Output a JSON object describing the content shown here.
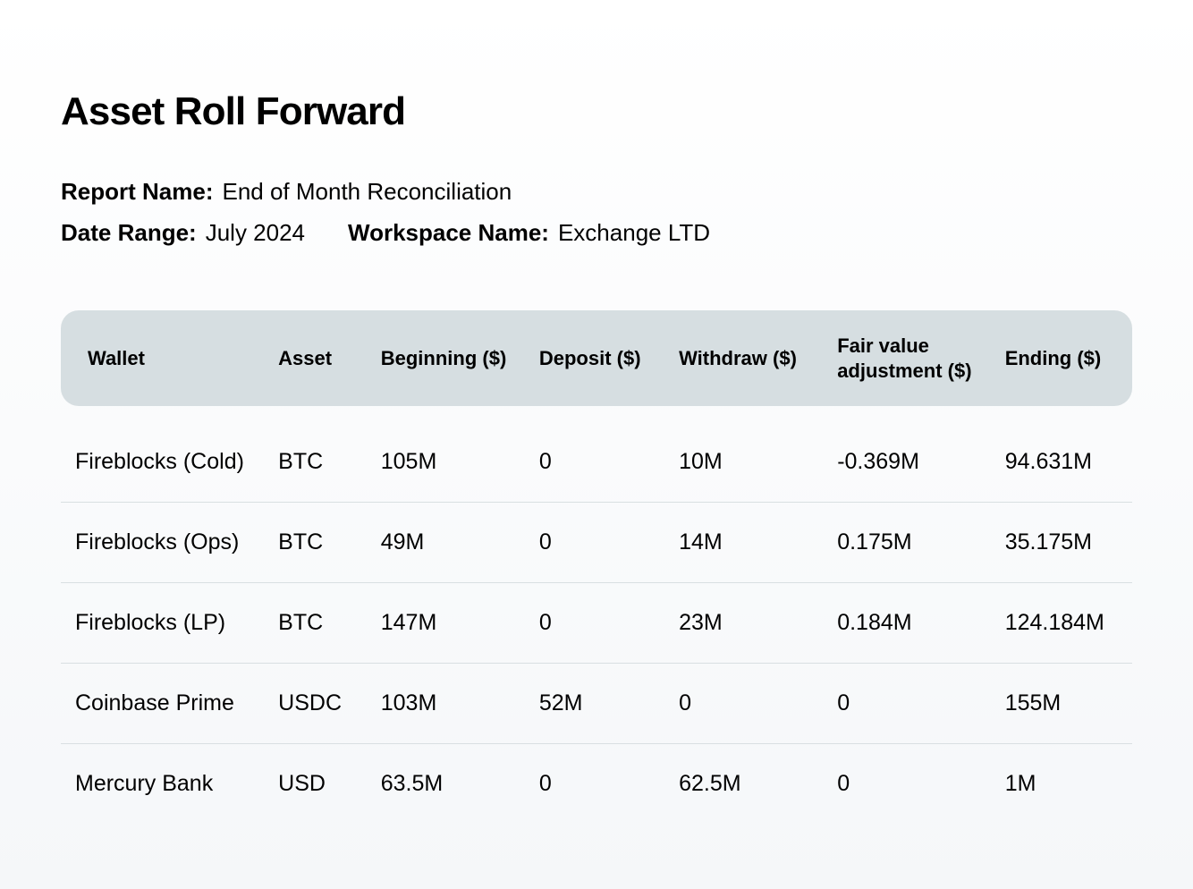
{
  "title": "Asset Roll Forward",
  "meta": {
    "report_name_label": "Report Name:",
    "report_name_value": "End of Month Reconciliation",
    "date_range_label": "Date Range:",
    "date_range_value": "July 2024",
    "workspace_label": "Workspace Name:",
    "workspace_value": "Exchange LTD"
  },
  "table": {
    "header_bg": "#d6dee1",
    "row_border_color": "#d9dfe2",
    "columns": [
      "Wallet",
      "Asset",
      "Beginning ($)",
      "Deposit ($)",
      "Withdraw ($)",
      "Fair value adjustment ($)",
      "Ending ($)"
    ],
    "rows": [
      {
        "wallet": "Fireblocks (Cold)",
        "asset": "BTC",
        "beginning": "105M",
        "deposit": "0",
        "withdraw": "10M",
        "fva": "-0.369M",
        "ending": "94.631M"
      },
      {
        "wallet": "Fireblocks (Ops)",
        "asset": "BTC",
        "beginning": "49M",
        "deposit": "0",
        "withdraw": "14M",
        "fva": "0.175M",
        "ending": "35.175M"
      },
      {
        "wallet": "Fireblocks (LP)",
        "asset": "BTC",
        "beginning": "147M",
        "deposit": "0",
        "withdraw": "23M",
        "fva": "0.184M",
        "ending": "124.184M"
      },
      {
        "wallet": "Coinbase Prime",
        "asset": "USDC",
        "beginning": "103M",
        "deposit": "52M",
        "withdraw": "0",
        "fva": "0",
        "ending": "155M"
      },
      {
        "wallet": "Mercury Bank",
        "asset": "USD",
        "beginning": "63.5M",
        "deposit": "0",
        "withdraw": "62.5M",
        "fva": "0",
        "ending": "1M"
      }
    ]
  },
  "colors": {
    "text": "#000000",
    "background_top": "#ffffff",
    "background_bottom": "#f5f7f9"
  },
  "typography": {
    "title_fontsize": 44,
    "meta_fontsize": 26,
    "header_fontsize": 22,
    "cell_fontsize": 25
  }
}
